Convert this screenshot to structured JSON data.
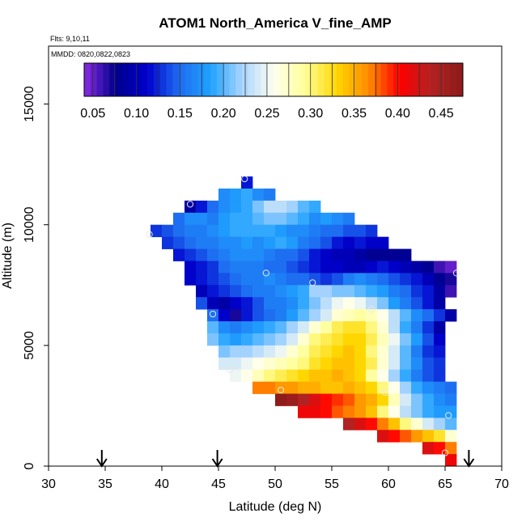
{
  "chart_data": {
    "type": "heatmap",
    "title": "ATOM1 North_America V_fine_AMP",
    "flights_note": "Flts: 9,10,11",
    "dates_note": "MMDD: 0820,0822,0823",
    "xlabel": "Latitude (deg N)",
    "ylabel": "Altitude (m)",
    "xlim": [
      30,
      70
    ],
    "ylim": [
      0,
      17400
    ],
    "x_ticks": [
      "30",
      "35",
      "40",
      "45",
      "50",
      "55",
      "60",
      "65",
      "70"
    ],
    "y_ticks": [
      "0",
      "5000",
      "10000",
      "15000"
    ],
    "colorbar": {
      "min": 0.04,
      "max": 0.475,
      "tick_values": [
        0.05,
        0.1,
        0.15,
        0.2,
        0.25,
        0.3,
        0.35,
        0.4,
        0.45
      ],
      "tick_labels": [
        "0.05",
        "0.10",
        "0.15",
        "0.20",
        "0.25",
        "0.30",
        "0.35",
        "0.40",
        "0.45"
      ],
      "colors": [
        "#8a2be2",
        "#00008b",
        "#0000cd",
        "#1e6cf0",
        "#1fa2ff",
        "#a8d4ff",
        "#fffff0",
        "#ffff99",
        "#ffd700",
        "#ff8c00",
        "#ff0000",
        "#b22222",
        "#8b1a1a"
      ]
    },
    "cell_size_deg": 1.0,
    "cell_size_m": 500,
    "arrows_lat": [
      34.7,
      44.9,
      67.1
    ],
    "data_rows": [
      {
        "alt": 11750,
        "lat0": 47,
        "values": [
          0.12
        ]
      },
      {
        "alt": 11250,
        "lat0": 45,
        "values": [
          0.17,
          0.18,
          0.19,
          0.17,
          0.16
        ]
      },
      {
        "alt": 10750,
        "lat0": 42,
        "values": [
          0.09,
          0.12,
          0.15,
          0.17,
          0.18,
          0.19,
          0.21,
          0.23,
          0.23,
          0.22,
          0.2,
          0.19
        ]
      },
      {
        "alt": 10250,
        "lat0": 41,
        "values": [
          0.15,
          0.17,
          0.17,
          0.16,
          0.18,
          0.19,
          0.19,
          0.2,
          0.21,
          0.21,
          0.2,
          0.19,
          0.17,
          0.18,
          0.17,
          0.16
        ]
      },
      {
        "alt": 9750,
        "lat0": 39,
        "values": [
          0.13,
          0.14,
          0.15,
          0.16,
          0.16,
          0.17,
          0.18,
          0.19,
          0.19,
          0.19,
          0.19,
          0.18,
          0.17,
          0.17,
          0.16,
          0.15,
          0.15,
          0.14,
          0.14,
          0.13
        ]
      },
      {
        "alt": 9250,
        "lat0": 40,
        "values": [
          0.13,
          0.14,
          0.15,
          0.16,
          0.16,
          0.17,
          0.17,
          0.18,
          0.17,
          0.18,
          0.19,
          0.18,
          0.16,
          0.15,
          0.14,
          0.12,
          0.11,
          0.12,
          0.11,
          0.11
        ]
      },
      {
        "alt": 8750,
        "lat0": 41,
        "values": [
          0.12,
          0.13,
          0.14,
          0.15,
          0.16,
          0.17,
          0.17,
          0.17,
          0.16,
          0.15,
          0.15,
          0.14,
          0.12,
          0.11,
          0.1,
          0.1,
          0.09,
          0.08,
          0.08,
          0.08,
          0.08
        ]
      },
      {
        "alt": 8250,
        "lat0": 42,
        "values": [
          0.11,
          0.12,
          0.13,
          0.15,
          0.16,
          0.16,
          0.16,
          0.15,
          0.15,
          0.14,
          0.13,
          0.12,
          0.11,
          0.11,
          0.1,
          0.1,
          0.11,
          0.12,
          0.11,
          0.1,
          0.09,
          0.08,
          0.06,
          0.05
        ]
      },
      {
        "alt": 7750,
        "lat0": 42,
        "values": [
          0.11,
          0.12,
          0.13,
          0.14,
          0.15,
          0.16,
          0.16,
          0.17,
          0.16,
          0.15,
          0.15,
          0.14,
          0.13,
          0.14,
          0.16,
          0.17,
          0.16,
          0.15,
          0.14,
          0.13,
          0.12,
          0.1,
          0.08,
          0.07
        ]
      },
      {
        "alt": 7250,
        "lat0": 43,
        "values": [
          0.1,
          0.12,
          0.13,
          0.14,
          0.15,
          0.16,
          0.16,
          0.17,
          0.18,
          0.19,
          0.22,
          0.22,
          0.21,
          0.21,
          0.2,
          0.19,
          0.18,
          0.16,
          0.15,
          0.13,
          0.12,
          0.09,
          0.06
        ]
      },
      {
        "alt": 6750,
        "lat0": 43,
        "values": [
          0.14,
          0.1,
          0.09,
          0.11,
          0.12,
          0.14,
          0.16,
          0.16,
          0.17,
          0.19,
          0.21,
          0.23,
          0.25,
          0.26,
          0.25,
          0.23,
          0.21,
          0.18,
          0.16,
          0.14,
          0.12,
          0.09
        ]
      },
      {
        "alt": 6250,
        "lat0": 44,
        "values": [
          0.15,
          0.11,
          0.07,
          0.12,
          0.14,
          0.15,
          0.16,
          0.18,
          0.2,
          0.22,
          0.24,
          0.27,
          0.28,
          0.29,
          0.28,
          0.26,
          0.23,
          0.2,
          0.17,
          0.15,
          0.13,
          0.09
        ]
      },
      {
        "alt": 5750,
        "lat0": 44,
        "values": [
          0.2,
          0.17,
          0.16,
          0.17,
          0.18,
          0.19,
          0.2,
          0.22,
          0.24,
          0.27,
          0.29,
          0.31,
          0.32,
          0.32,
          0.3,
          0.27,
          0.23,
          0.19,
          0.16,
          0.13,
          0.09
        ]
      },
      {
        "alt": 5250,
        "lat0": 44,
        "values": [
          0.21,
          0.19,
          0.18,
          0.19,
          0.2,
          0.21,
          0.22,
          0.24,
          0.27,
          0.3,
          0.31,
          0.32,
          0.33,
          0.33,
          0.31,
          0.28,
          0.25,
          0.21,
          0.18,
          0.14,
          0.11
        ]
      },
      {
        "alt": 4750,
        "lat0": 45,
        "values": [
          0.21,
          0.22,
          0.22,
          0.23,
          0.24,
          0.25,
          0.27,
          0.29,
          0.31,
          0.32,
          0.33,
          0.34,
          0.33,
          0.3,
          0.27,
          0.24,
          0.2,
          0.16,
          0.13,
          0.12
        ]
      },
      {
        "alt": 4250,
        "lat0": 45,
        "values": [
          0.24,
          0.24,
          0.25,
          0.26,
          0.27,
          0.28,
          0.29,
          0.3,
          0.32,
          0.33,
          0.34,
          0.34,
          0.33,
          0.31,
          0.27,
          0.24,
          0.2,
          0.17,
          0.14,
          0.13
        ]
      },
      {
        "alt": 3750,
        "lat0": 46,
        "values": [
          0.25,
          0.26,
          0.28,
          0.3,
          0.31,
          0.32,
          0.33,
          0.34,
          0.34,
          0.35,
          0.34,
          0.33,
          0.29,
          0.26,
          0.22,
          0.19,
          0.16,
          0.14,
          0.13
        ]
      },
      {
        "alt": 3250,
        "lat0": 48,
        "values": [
          0.37,
          0.37,
          0.36,
          0.36,
          0.35,
          0.35,
          0.34,
          0.34,
          0.35,
          0.34,
          0.33,
          0.3,
          0.26,
          0.22,
          0.19,
          0.17,
          0.16,
          0.15
        ]
      },
      {
        "alt": 2750,
        "lat0": 50,
        "values": [
          0.47,
          0.46,
          0.44,
          0.42,
          0.4,
          0.39,
          0.38,
          0.36,
          0.35,
          0.33,
          0.28,
          0.24,
          0.21,
          0.19,
          0.17,
          0.16
        ]
      },
      {
        "alt": 2250,
        "lat0": 52,
        "values": [
          0.41,
          0.41,
          0.4,
          0.38,
          0.37,
          0.36,
          0.34,
          0.3,
          0.26,
          0.23,
          0.21,
          0.19,
          0.18,
          0.18
        ]
      },
      {
        "alt": 1750,
        "lat0": 56,
        "values": [
          0.44,
          0.42,
          0.4,
          0.37,
          0.34,
          0.3,
          0.27,
          0.24,
          0.22,
          0.2
        ]
      },
      {
        "alt": 1250,
        "lat0": 59,
        "values": [
          0.42,
          0.4,
          0.38,
          0.36,
          0.34,
          0.32,
          0.27
        ]
      },
      {
        "alt": 750,
        "lat0": 63,
        "values": [
          0.42,
          0.4,
          0.37
        ]
      },
      {
        "alt": 250,
        "lat0": 65,
        "values": [
          0.41
        ]
      }
    ],
    "open_circle_markers": [
      {
        "lat": 47.3,
        "alt": 11900
      },
      {
        "lat": 42.5,
        "alt": 10850
      },
      {
        "lat": 38.9,
        "alt": 9600
      },
      {
        "lat": 49.2,
        "alt": 8000
      },
      {
        "lat": 53.3,
        "alt": 7600
      },
      {
        "lat": 66.0,
        "alt": 8000
      },
      {
        "lat": 44.5,
        "alt": 6300
      },
      {
        "lat": 46.0,
        "alt": 4000
      },
      {
        "lat": 58.5,
        "alt": 6500
      },
      {
        "lat": 50.5,
        "alt": 3150
      },
      {
        "lat": 59.7,
        "alt": 3050
      },
      {
        "lat": 65.3,
        "alt": 2100
      },
      {
        "lat": 65.0,
        "alt": 550
      }
    ]
  }
}
